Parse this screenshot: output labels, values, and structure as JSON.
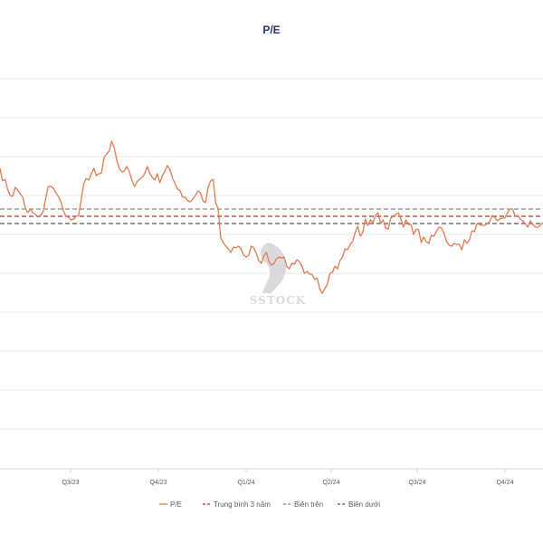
{
  "watermark": {
    "text": "SSTOCK"
  },
  "colors": {
    "pe": "#e07b4f",
    "mean": "#b22d2d",
    "upper": "#8c8c8c",
    "lower": "#555555",
    "grid": "#e6e8ee",
    "watermark": "#d9d9de"
  },
  "chart_data": {
    "type": "line",
    "title": "P/E",
    "xlabel": "",
    "ylabel": "",
    "grid": "horizontal",
    "legend_position": "bottom-center",
    "x_ticks": [
      "Q3/23",
      "Q4/23",
      "Q1/24",
      "Q2/24",
      "Q3/24",
      "Q4/24"
    ],
    "series": [
      {
        "name": "P/E",
        "style": "solid",
        "values": [
          289,
          275,
          277,
          266,
          259,
          258,
          268,
          265,
          261,
          257,
          245,
          240,
          244,
          240,
          238,
          235,
          237,
          241,
          256,
          269,
          269,
          267,
          262,
          258,
          252,
          242,
          236,
          235,
          232,
          233,
          236,
          237,
          254,
          272,
          278,
          276,
          283,
          289,
          281,
          283,
          284,
          301,
          305,
          308,
          319,
          312,
          298,
          289,
          285,
          286,
          291,
          285,
          276,
          269,
          274,
          277,
          279,
          283,
          291,
          284,
          279,
          276,
          283,
          273,
          281,
          286,
          292,
          287,
          278,
          272,
          266,
          264,
          257,
          257,
          253,
          252,
          255,
          259,
          264,
          262,
          253,
          251,
          268,
          275,
          277,
          251,
          244,
          212,
          207,
          203,
          200,
          196,
          202,
          201,
          203,
          200,
          193,
          191,
          193,
          203,
          201,
          195,
          187,
          184,
          192,
          196,
          186,
          182,
          184,
          189,
          191,
          190,
          191,
          181,
          178,
          184,
          183,
          188,
          186,
          181,
          173,
          175,
          172,
          172,
          166,
          168,
          156,
          151,
          156,
          161,
          173,
          174,
          181,
          178,
          187,
          191,
          200,
          199,
          205,
          208,
          218,
          225,
          214,
          218,
          233,
          226,
          232,
          229,
          237,
          240,
          228,
          232,
          223,
          222,
          234,
          236,
          238,
          240,
          233,
          224,
          232,
          227,
          227,
          216,
          222,
          221,
          207,
          213,
          208,
          206,
          215,
          214,
          219,
          224,
          223,
          217,
          208,
          204,
          203,
          206,
          205,
          205,
          199,
          210,
          206,
          210,
          220,
          219,
          228,
          227,
          226,
          226,
          228,
          230,
          237,
          235,
          231,
          233,
          234,
          234,
          240,
          244,
          244,
          236,
          237,
          233,
          231,
          228,
          224,
          231,
          227,
          224,
          224,
          226,
          229
        ]
      },
      {
        "name": "Trung bình 3 năm",
        "style": "dashed",
        "values": [
          236
        ]
      },
      {
        "name": "Biên trên",
        "style": "dashed",
        "values": [
          244
        ]
      },
      {
        "name": "Biên dưới",
        "style": "dashed",
        "values": [
          228
        ]
      }
    ]
  },
  "legend": [
    {
      "label": "P/E"
    },
    {
      "label": "Trung bình 3 năm"
    },
    {
      "label": "Biên trên"
    },
    {
      "label": "Biên dưới"
    }
  ]
}
